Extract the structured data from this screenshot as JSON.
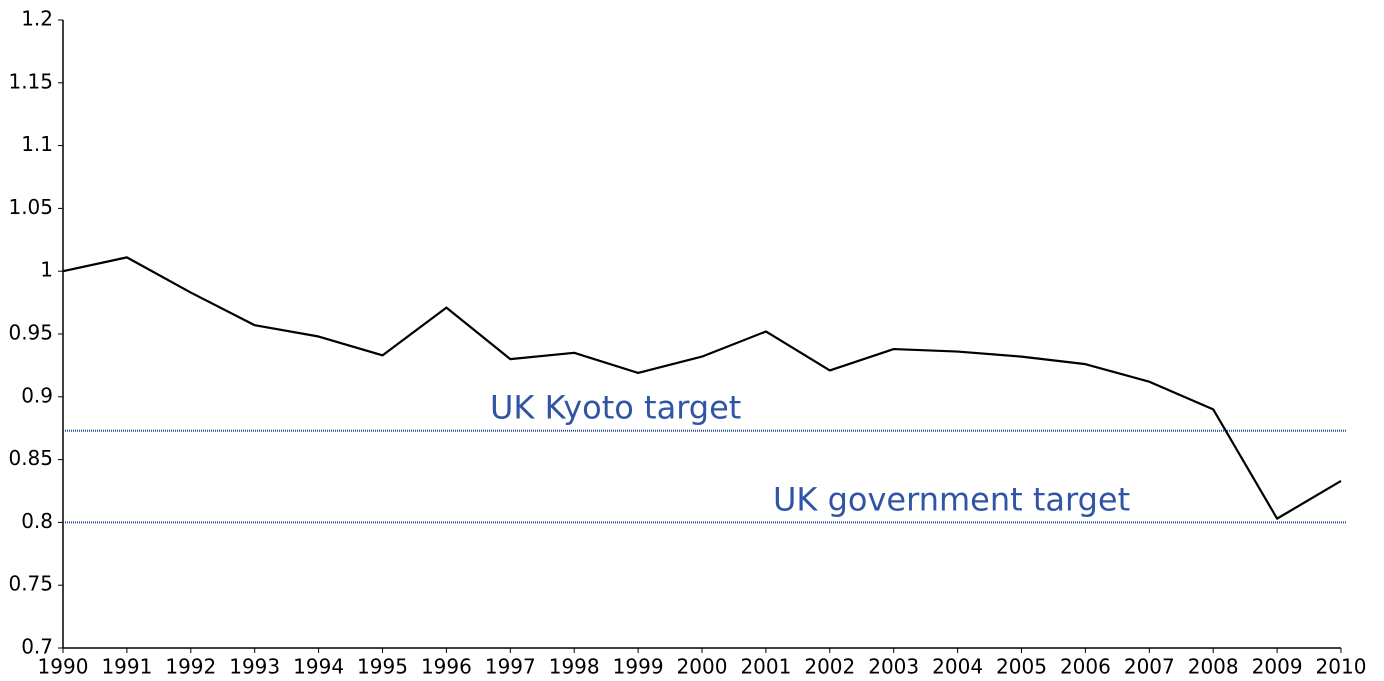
{
  "chart_data": {
    "type": "line",
    "x": [
      1990,
      1991,
      1992,
      1993,
      1994,
      1995,
      1996,
      1997,
      1998,
      1999,
      2000,
      2001,
      2002,
      2003,
      2004,
      2005,
      2006,
      2007,
      2008,
      2009,
      2010
    ],
    "series": [
      {
        "color": "#000000",
        "values": [
          1.0,
          1.011,
          0.983,
          0.957,
          0.948,
          0.933,
          0.971,
          0.93,
          0.935,
          0.919,
          0.932,
          0.952,
          0.921,
          0.938,
          0.936,
          0.932,
          0.926,
          0.912,
          0.89,
          0.803,
          0.833
        ]
      }
    ],
    "xlim": [
      1990,
      2010
    ],
    "xticks": [
      1990,
      1991,
      1992,
      1993,
      1994,
      1995,
      1996,
      1997,
      1998,
      1999,
      2000,
      2001,
      2002,
      2003,
      2004,
      2005,
      2006,
      2007,
      2008,
      2009,
      2010
    ],
    "ylim": [
      0.7,
      1.2
    ],
    "yticks": [
      0.7,
      0.75,
      0.8,
      0.85,
      0.9,
      0.95,
      1,
      1.05,
      1.1,
      1.15,
      1.2
    ],
    "reference_lines": [
      {
        "text": "UK Kyoto target",
        "value": 0.873,
        "color": "#2b4ea0"
      },
      {
        "text": "UK government target",
        "value": 0.8,
        "color": "#2b4ea0"
      }
    ]
  }
}
